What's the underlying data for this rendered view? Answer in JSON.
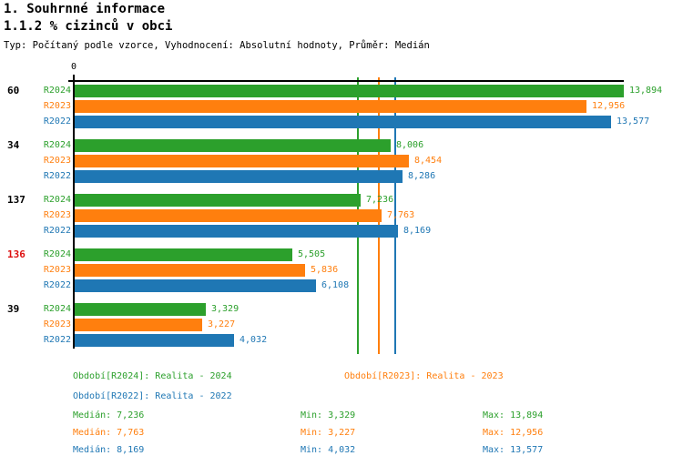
{
  "header": {
    "title_line1": "1. Souhrnné informace",
    "title_line2": "1.1.2 % cizinců v obci",
    "meta": "Typ: Počítaný podle vzorce, Vyhodnocení: Absolutní hodnoty, Průměr: Medián"
  },
  "colors": {
    "green_2024": "#2CA02C",
    "orange_2023": "#FF7F0E",
    "blue_2022": "#1F77B4",
    "highlight_red": "#DD1111",
    "axis_black": "#000000"
  },
  "chart_data": {
    "type": "bar",
    "orientation": "horizontal",
    "x_axis_origin_label": "0",
    "xlim": [
      0,
      13894
    ],
    "grid": false,
    "series_names": [
      "R2024",
      "R2023",
      "R2022"
    ],
    "series_colors": [
      "#2CA02C",
      "#FF7F0E",
      "#1F77B4"
    ],
    "groups": [
      {
        "label": "60",
        "label_highlighted": false,
        "values": [
          13894,
          12956,
          13577
        ],
        "value_labels": [
          "13,894",
          "12,956",
          "13,577"
        ]
      },
      {
        "label": "34",
        "label_highlighted": false,
        "values": [
          8006,
          8454,
          8286
        ],
        "value_labels": [
          "8,006",
          "8,454",
          "8,286"
        ]
      },
      {
        "label": "137",
        "label_highlighted": false,
        "values": [
          7236,
          7763,
          8169
        ],
        "value_labels": [
          "7,236",
          "7,763",
          "8,169"
        ]
      },
      {
        "label": "136",
        "label_highlighted": true,
        "values": [
          5505,
          5836,
          6108
        ],
        "value_labels": [
          "5,505",
          "5,836",
          "6,108"
        ]
      },
      {
        "label": "39",
        "label_highlighted": false,
        "values": [
          3329,
          3227,
          4032
        ],
        "value_labels": [
          "3,329",
          "3,227",
          "4,032"
        ]
      }
    ],
    "median_reference_lines": [
      {
        "series": "R2024",
        "value": 7236
      },
      {
        "series": "R2023",
        "value": 7763
      },
      {
        "series": "R2022",
        "value": 8169
      }
    ]
  },
  "legend": {
    "r2024": "Období[R2024]: Realita - 2024",
    "r2023": "Období[R2023]: Realita - 2023",
    "r2022": "Období[R2022]: Realita - 2022"
  },
  "stats": {
    "rows": [
      {
        "series": "R2024",
        "median": "Medián: 7,236",
        "min": "Min: 3,329",
        "max": "Max: 13,894"
      },
      {
        "series": "R2023",
        "median": "Medián: 7,763",
        "min": "Min: 3,227",
        "max": "Max: 12,956"
      },
      {
        "series": "R2022",
        "median": "Medián: 8,169",
        "min": "Min: 4,032",
        "max": "Max: 13,577"
      }
    ]
  }
}
